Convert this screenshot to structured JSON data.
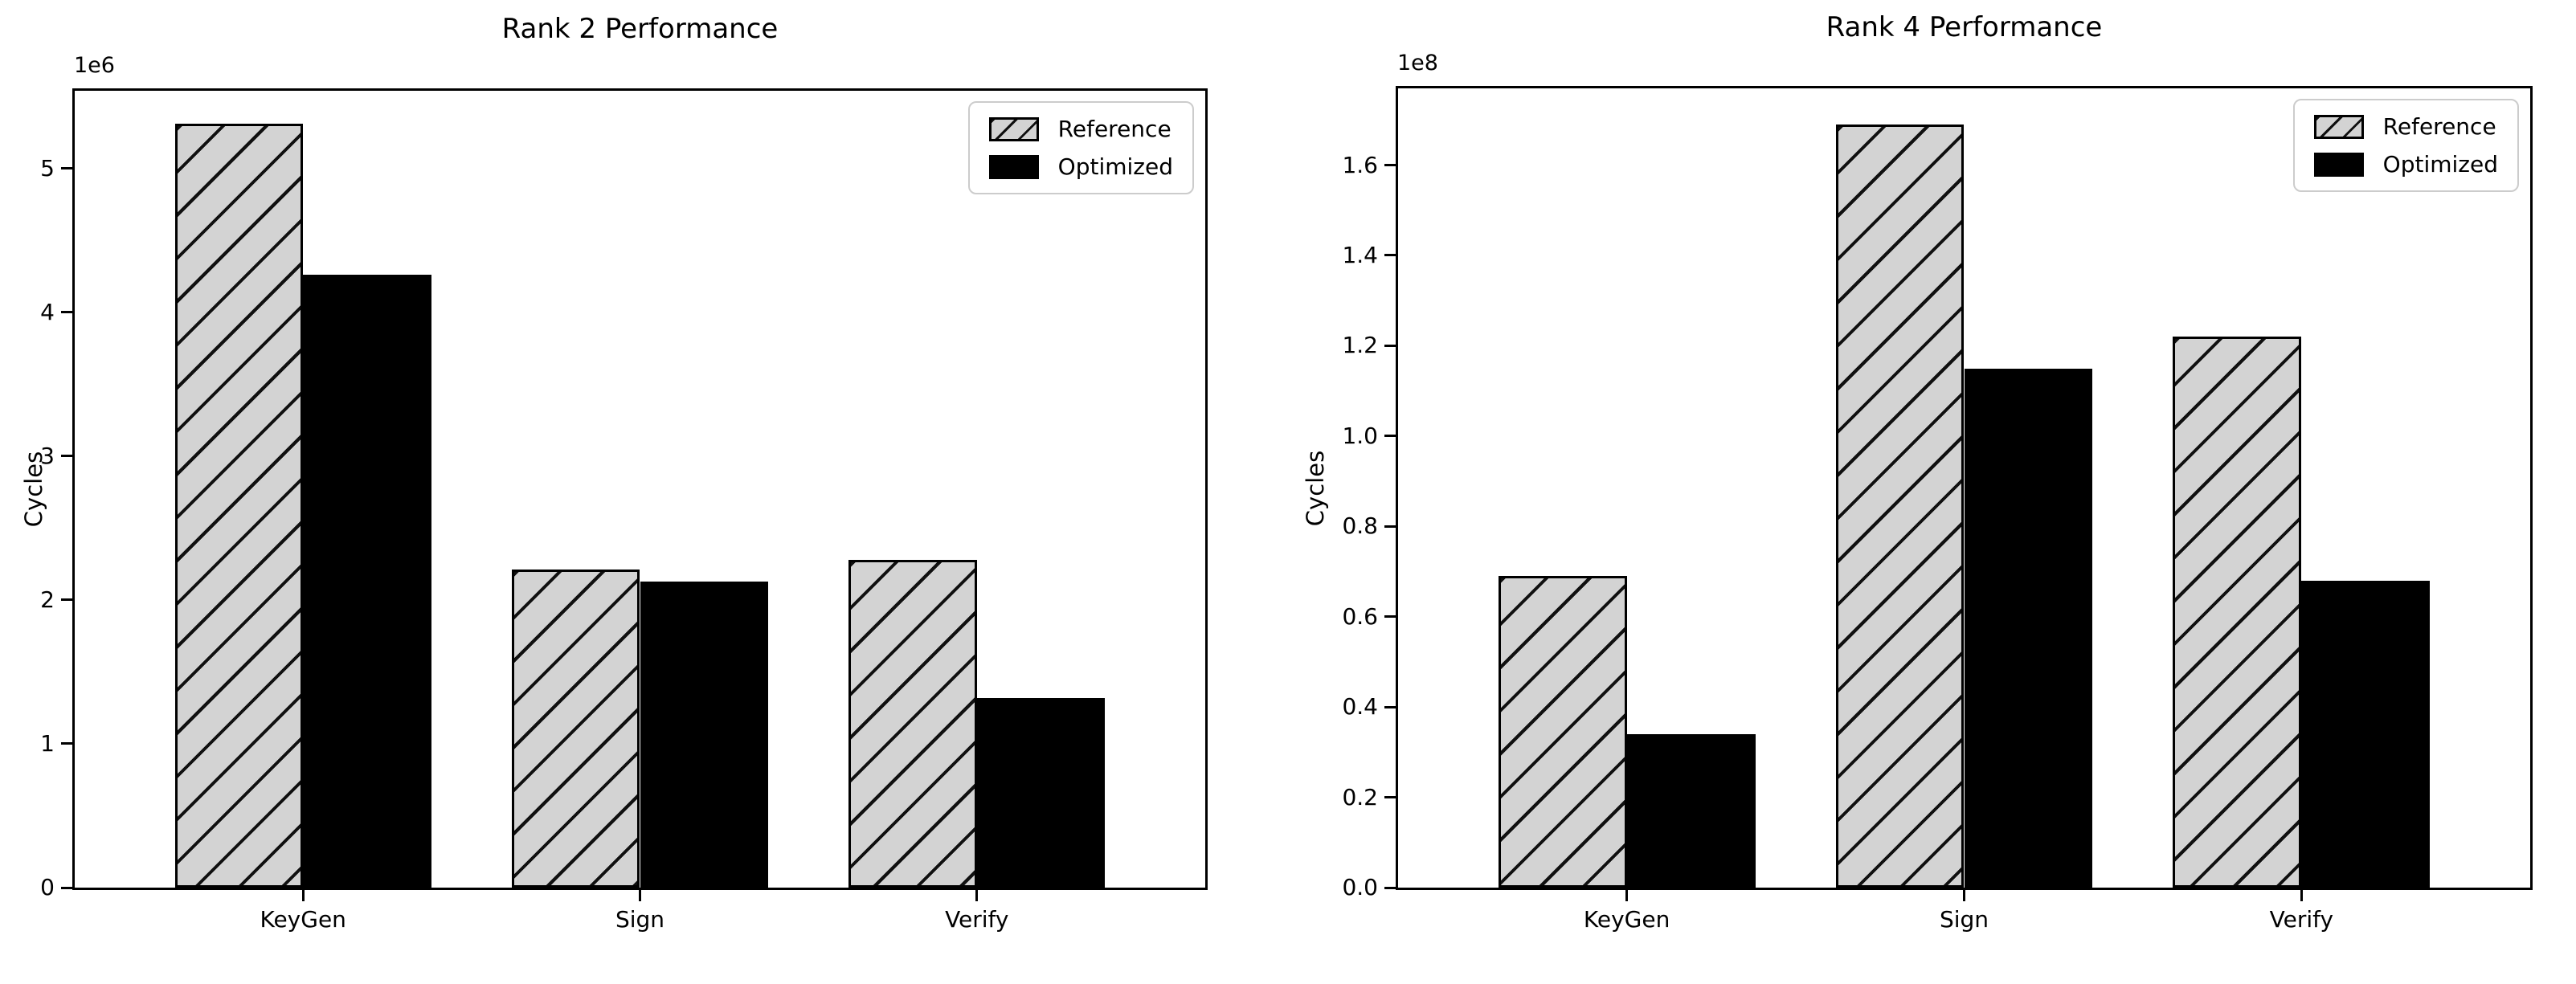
{
  "figure": {
    "background": "#ffffff"
  },
  "colors": {
    "reference_fill": "#d3d3d3",
    "reference_edge": "#000000",
    "optimized_fill": "#000000",
    "axis": "#000000",
    "legend_border": "#cccccc",
    "text": "#000000"
  },
  "chart_data": [
    {
      "type": "bar",
      "title": "Rank 2 Performance",
      "xlabel": "",
      "ylabel": "Cycles",
      "offset_label": "1e6",
      "categories": [
        "KeyGen",
        "Sign",
        "Verify"
      ],
      "series": [
        {
          "name": "Reference",
          "values": [
            5310000,
            2210000,
            2280000
          ],
          "fill": "#d3d3d3",
          "hatch": "/"
        },
        {
          "name": "Optimized",
          "values": [
            4260000,
            2130000,
            1320000
          ],
          "fill": "#000000",
          "hatch": ""
        }
      ],
      "ylim": [
        0,
        5540000
      ],
      "yticks": [
        0,
        1000000,
        2000000,
        3000000,
        4000000,
        5000000
      ],
      "ytick_labels": [
        "0",
        "1",
        "2",
        "3",
        "4",
        "5"
      ],
      "legend_position": "upper right",
      "grid": false
    },
    {
      "type": "bar",
      "title": "Rank 4 Performance",
      "xlabel": "",
      "ylabel": "Cycles",
      "offset_label": "1e8",
      "categories": [
        "KeyGen",
        "Sign",
        "Verify"
      ],
      "series": [
        {
          "name": "Reference",
          "values": [
            69000000,
            169000000,
            122000000
          ],
          "fill": "#d3d3d3",
          "hatch": "/"
        },
        {
          "name": "Optimized",
          "values": [
            34000000,
            115000000,
            68000000
          ],
          "fill": "#000000",
          "hatch": ""
        }
      ],
      "ylim": [
        0,
        177000000
      ],
      "yticks": [
        0,
        20000000,
        40000000,
        60000000,
        80000000,
        100000000,
        120000000,
        140000000,
        160000000
      ],
      "ytick_labels": [
        "0.0",
        "0.2",
        "0.4",
        "0.6",
        "0.8",
        "1.0",
        "1.2",
        "1.4",
        "1.6"
      ],
      "legend_position": "upper right",
      "grid": false
    }
  ]
}
